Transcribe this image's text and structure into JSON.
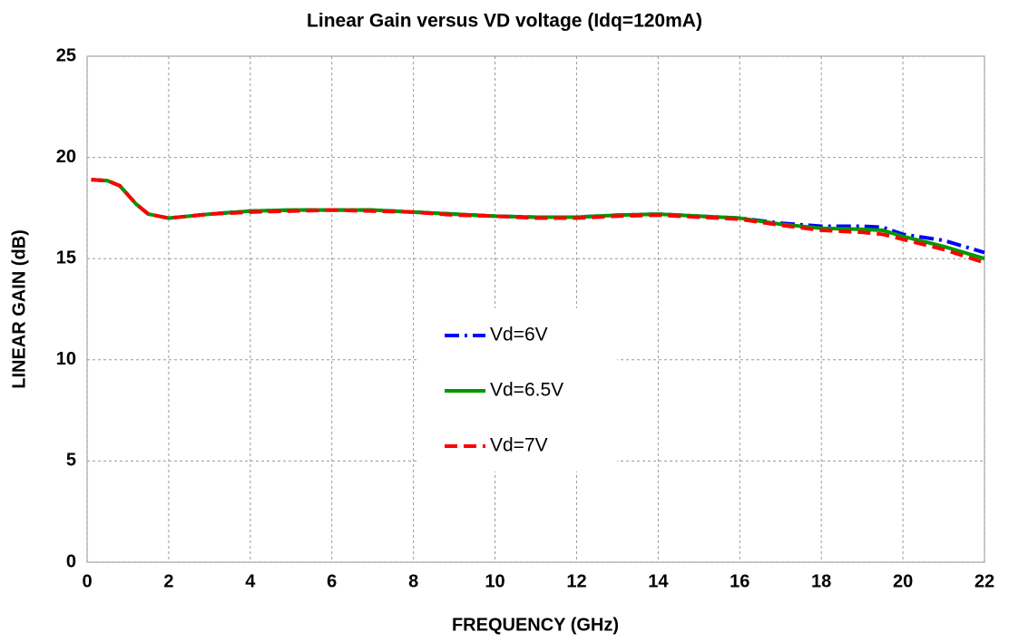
{
  "chart_data": {
    "type": "line",
    "title": "Linear Gain versus VD voltage (Idq=120mA)",
    "xlabel": "FREQUENCY (GHz)",
    "ylabel": "LINEAR GAIN (dB)",
    "x": [
      0.1,
      0.5,
      0.8,
      1.2,
      1.5,
      2,
      3,
      4,
      5,
      6,
      7,
      8,
      9,
      10,
      11,
      12,
      13,
      14,
      15,
      16,
      17,
      18,
      19,
      19.5,
      20,
      21,
      22
    ],
    "series": [
      {
        "name": "Vd=6V",
        "color": "#0000ff",
        "style": "dashdot",
        "values": [
          18.9,
          18.85,
          18.6,
          17.7,
          17.2,
          17.0,
          17.2,
          17.35,
          17.4,
          17.4,
          17.4,
          17.3,
          17.2,
          17.1,
          17.05,
          17.05,
          17.15,
          17.2,
          17.1,
          17.0,
          16.75,
          16.6,
          16.6,
          16.55,
          16.2,
          15.9,
          15.3
        ]
      },
      {
        "name": "Vd=6.5V",
        "color": "#009900",
        "style": "solid",
        "values": [
          18.9,
          18.85,
          18.6,
          17.7,
          17.2,
          17.0,
          17.2,
          17.35,
          17.4,
          17.4,
          17.4,
          17.3,
          17.2,
          17.1,
          17.05,
          17.05,
          17.15,
          17.2,
          17.1,
          17.0,
          16.7,
          16.5,
          16.45,
          16.4,
          16.1,
          15.6,
          15.0
        ]
      },
      {
        "name": "Vd=7V",
        "color": "#ff0000",
        "style": "dashed",
        "values": [
          18.9,
          18.85,
          18.6,
          17.7,
          17.2,
          17.0,
          17.2,
          17.3,
          17.35,
          17.4,
          17.35,
          17.3,
          17.15,
          17.1,
          17.0,
          17.0,
          17.1,
          17.15,
          17.05,
          16.95,
          16.65,
          16.4,
          16.3,
          16.2,
          15.95,
          15.45,
          14.8
        ]
      }
    ],
    "xlim": [
      0,
      22
    ],
    "xticks": [
      0,
      2,
      4,
      6,
      8,
      10,
      12,
      14,
      16,
      18,
      20,
      22
    ],
    "ylim": [
      0,
      25
    ],
    "yticks": [
      0,
      5,
      10,
      15,
      20,
      25
    ],
    "grid": true,
    "legend": "center"
  }
}
